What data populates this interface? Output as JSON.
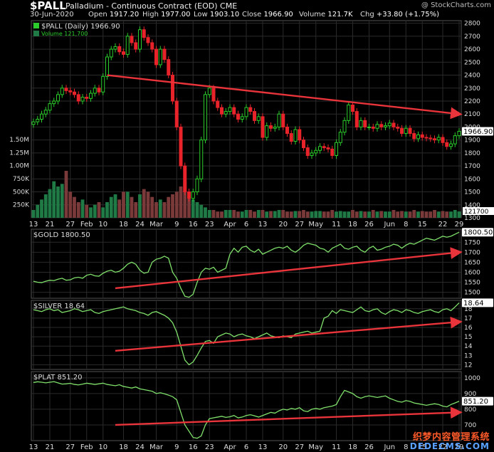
{
  "header": {
    "symbol": "$PALL",
    "name": "Palladium - Continuous Contract (EOD)",
    "exchange": "CME",
    "watermark": "@ StockCharts.com",
    "date": "30-Jun-2020",
    "open_label": "Open",
    "open": "1917.20",
    "high_label": "High",
    "high": "1977.00",
    "low_label": "Low",
    "low": "1903.10",
    "close_label": "Close",
    "close": "1966.90",
    "volume_label": "Volume",
    "volume": "121.7K",
    "chg_label": "Chg",
    "chg": "+33.80 (+1.75%)"
  },
  "site_watermark": {
    "cn": "织梦内容管理系统",
    "domain": "DEDECMS.COM"
  },
  "colors": {
    "up": "#2bcc2b",
    "down": "#e8232a",
    "line": "#7fe06a",
    "arrow": "#e8343a",
    "vol_up": "#1f7a45",
    "vol_down": "#7a3a3a",
    "grid": "#2a2a2a",
    "axis_text": "#dddddd"
  },
  "x_axis_labels": [
    "13",
    "21",
    "27",
    "Feb",
    "10",
    "18",
    "24",
    "Mar",
    "9",
    "16",
    "23",
    "Apr",
    "6",
    "13",
    "20",
    "27",
    "May",
    "11",
    "18",
    "26",
    "Jun",
    "8",
    "15",
    "22",
    "29"
  ],
  "chart_data": [
    {
      "type": "candlestick",
      "title": "$PALL (Daily) 1966.90",
      "volume_label": "Volume 121,700",
      "y_ticks": [
        1300,
        1400,
        1500,
        1600,
        1700,
        1800,
        1900,
        2000,
        2100,
        2200,
        2300,
        2400,
        2500,
        2600,
        2700,
        2800
      ],
      "ylim": [
        1300,
        2820
      ],
      "last_value_label": "1966.90",
      "volume_axis_labels": [
        "1.50M",
        "1.25M",
        "1.00M",
        "750K",
        "500K",
        "250K"
      ],
      "volume_last_label": "121700",
      "volume_ylim": [
        0,
        1500000
      ],
      "closes": [
        2040,
        2060,
        2100,
        2130,
        2180,
        2200,
        2250,
        2300,
        2280,
        2270,
        2250,
        2200,
        2230,
        2220,
        2260,
        2300,
        2270,
        2390,
        2540,
        2600,
        2620,
        2580,
        2560,
        2700,
        2650,
        2600,
        2750,
        2690,
        2650,
        2600,
        2480,
        2600,
        2520,
        2400,
        2200,
        2000,
        1700,
        1500,
        1450,
        1500,
        1600,
        1900,
        2250,
        2300,
        2200,
        2150,
        2100,
        2120,
        2150,
        2100,
        2060,
        2080,
        2150,
        2120,
        2050,
        2080,
        1920,
        2010,
        1990,
        2000,
        2100,
        2000,
        1950,
        1890,
        1980,
        1900,
        1840,
        1780,
        1800,
        1820,
        1850,
        1840,
        1830,
        1780,
        1880,
        1960,
        2050,
        2170,
        2120,
        2000,
        2050,
        2000,
        2000,
        1990,
        2020,
        2000,
        2010,
        2030,
        2000,
        1990,
        1950,
        1990,
        1950,
        1910,
        1940,
        1920,
        1915,
        1910,
        1900,
        1920,
        1880,
        1850,
        1870,
        1933,
        1967
      ],
      "volumes": [
        150000,
        250000,
        350000,
        450000,
        550000,
        700000,
        600000,
        650000,
        900000,
        500000,
        400000,
        300000,
        350000,
        250000,
        200000,
        250000,
        300000,
        200000,
        300000,
        400000,
        450000,
        350000,
        500000,
        500000,
        400000,
        300000,
        450000,
        550000,
        500000,
        400000,
        300000,
        350000,
        300000,
        400000,
        450000,
        500000,
        600000,
        700000,
        400000,
        350000,
        300000,
        250000,
        200000,
        150000,
        150000,
        120000,
        120000,
        150000,
        150000,
        150000,
        120000,
        120000,
        150000,
        150000,
        120000,
        150000,
        150000,
        120000,
        130000,
        130000,
        150000,
        150000,
        120000,
        120000,
        130000,
        130000,
        150000,
        120000,
        120000,
        130000,
        130000,
        120000,
        120000,
        150000,
        120000,
        130000,
        120000,
        120000,
        150000,
        120000,
        130000,
        120000,
        120000,
        150000,
        120000,
        130000,
        120000,
        120000,
        150000,
        120000,
        130000,
        120000,
        120000,
        150000,
        120000,
        130000,
        120000,
        120000,
        150000,
        120000,
        130000,
        120000,
        120000,
        150000,
        121700
      ],
      "trend_annotation": {
        "direction": "down",
        "from": [
          18,
          2400
        ],
        "to": [
          104,
          2100
        ]
      }
    },
    {
      "type": "line",
      "title": "$GOLD 1800.50",
      "y_ticks": [
        1500,
        1550,
        1600,
        1650,
        1700,
        1750
      ],
      "ylim": [
        1470,
        1815
      ],
      "last_value_label": "1800.50",
      "values": [
        1555,
        1550,
        1548,
        1555,
        1560,
        1558,
        1565,
        1570,
        1560,
        1562,
        1572,
        1575,
        1570,
        1585,
        1590,
        1582,
        1580,
        1595,
        1605,
        1610,
        1600,
        1605,
        1620,
        1640,
        1650,
        1640,
        1610,
        1595,
        1600,
        1650,
        1665,
        1670,
        1680,
        1670,
        1600,
        1570,
        1520,
        1480,
        1475,
        1490,
        1550,
        1600,
        1620,
        1615,
        1625,
        1600,
        1610,
        1620,
        1690,
        1720,
        1700,
        1725,
        1730,
        1710,
        1700,
        1715,
        1690,
        1700,
        1710,
        1720,
        1725,
        1720,
        1730,
        1710,
        1700,
        1715,
        1735,
        1745,
        1740,
        1735,
        1720,
        1715,
        1700,
        1720,
        1730,
        1740,
        1720,
        1715,
        1725,
        1730,
        1710,
        1700,
        1720,
        1730,
        1710,
        1715,
        1725,
        1730,
        1740,
        1735,
        1720,
        1735,
        1745,
        1740,
        1750,
        1760,
        1770,
        1765,
        1760,
        1770,
        1780,
        1775,
        1780,
        1790,
        1800
      ],
      "trend_annotation": {
        "direction": "up",
        "from": [
          20,
          1520
        ],
        "to": [
          104,
          1700
        ]
      }
    },
    {
      "type": "line",
      "title": "$SILVER 18.64",
      "y_ticks": [
        12,
        13,
        14,
        15,
        16,
        17,
        18
      ],
      "ylim": [
        11.5,
        18.9
      ],
      "last_value_label": "18.64",
      "values": [
        17.9,
        17.8,
        17.7,
        17.9,
        18.0,
        17.8,
        17.9,
        17.6,
        17.7,
        17.8,
        18.0,
        17.9,
        17.7,
        17.8,
        17.9,
        17.6,
        17.5,
        17.7,
        17.8,
        17.9,
        18.0,
        18.1,
        18.2,
        18.0,
        17.9,
        17.8,
        17.6,
        17.5,
        17.3,
        17.6,
        17.7,
        17.5,
        17.3,
        17.0,
        16.5,
        15.5,
        14.0,
        12.5,
        12.0,
        12.3,
        13.0,
        13.8,
        14.5,
        14.6,
        14.3,
        15.0,
        15.2,
        15.4,
        15.3,
        15.0,
        15.2,
        15.3,
        15.1,
        15.0,
        14.8,
        15.0,
        15.2,
        15.4,
        15.1,
        15.0,
        14.9,
        15.1,
        15.0,
        14.9,
        15.3,
        15.4,
        15.5,
        15.6,
        15.4,
        15.5,
        15.6,
        17.0,
        17.2,
        17.8,
        17.5,
        17.9,
        17.8,
        17.7,
        17.6,
        17.9,
        18.2,
        17.8,
        17.7,
        17.9,
        18.0,
        17.6,
        17.4,
        17.7,
        17.9,
        17.8,
        17.6,
        17.9,
        17.8,
        17.6,
        17.5,
        17.7,
        17.8,
        17.9,
        17.7,
        17.6,
        17.9,
        18.0,
        17.8,
        18.2,
        18.64
      ],
      "trend_annotation": {
        "direction": "up",
        "from": [
          20,
          13.5
        ],
        "to": [
          104,
          16.6
        ]
      }
    },
    {
      "type": "line",
      "title": "$PLAT 851.20",
      "y_ticks": [
        700,
        800,
        900,
        1000
      ],
      "ylim": [
        600,
        1040
      ],
      "last_value_label": "851.20",
      "values": [
        970,
        975,
        972,
        968,
        972,
        976,
        968,
        960,
        962,
        965,
        958,
        955,
        960,
        966,
        962,
        958,
        962,
        966,
        958,
        954,
        950,
        956,
        945,
        940,
        935,
        942,
        930,
        925,
        920,
        915,
        900,
        905,
        898,
        890,
        880,
        860,
        780,
        700,
        660,
        620,
        615,
        630,
        700,
        740,
        745,
        750,
        755,
        748,
        752,
        760,
        745,
        750,
        760,
        765,
        758,
        750,
        760,
        770,
        780,
        775,
        790,
        800,
        795,
        805,
        800,
        810,
        790,
        785,
        800,
        805,
        800,
        810,
        815,
        820,
        830,
        880,
        920,
        910,
        900,
        880,
        870,
        880,
        885,
        880,
        875,
        880,
        885,
        870,
        860,
        850,
        845,
        855,
        850,
        840,
        835,
        830,
        825,
        830,
        835,
        830,
        820,
        815,
        830,
        840,
        851.2
      ],
      "trend_annotation": {
        "direction": "up",
        "from": [
          20,
          700
        ],
        "to": [
          104,
          780
        ]
      }
    }
  ]
}
